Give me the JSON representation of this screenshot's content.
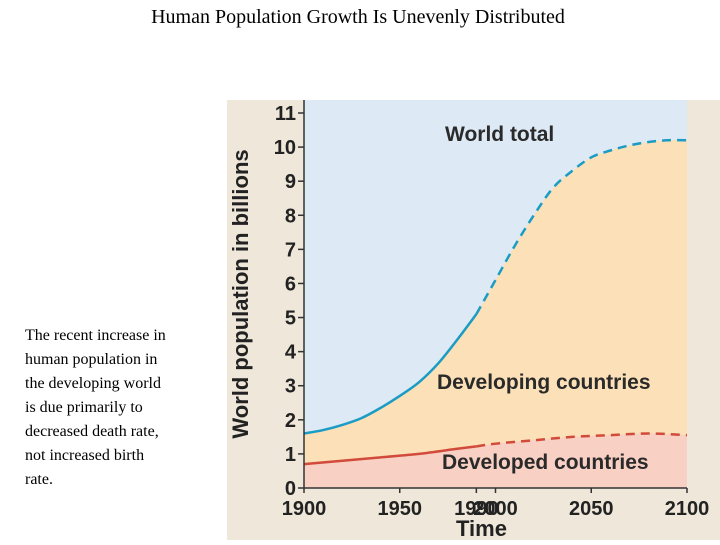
{
  "slide": {
    "title": "Human Population Growth Is Unevenly Distributed",
    "caption_lines": [
      "The recent increase in",
      "human population in",
      "the developing world",
      "is due primarily to",
      "decreased death rate,",
      "not increased birth",
      "rate."
    ]
  },
  "colors": {
    "world_area": "#dde9f5",
    "developing_area": "#fbe0b8",
    "developed_area": "#f8d0c4",
    "world_line": "#1a9cc4",
    "developed_line": "#d24a3a",
    "panel_bg": "#efe7d9"
  },
  "chart_data": {
    "type": "area",
    "title": "",
    "xlabel": "Time",
    "ylabel": "World population in billions",
    "xlim": [
      1900,
      2100
    ],
    "ylim": [
      0,
      11
    ],
    "x_ticks": [
      1900,
      1950,
      1990,
      2000,
      2050,
      2100
    ],
    "y_ticks": [
      0,
      1,
      2,
      3,
      4,
      5,
      6,
      7,
      8,
      9,
      10,
      11
    ],
    "projection_start": 1990,
    "series": [
      {
        "name": "World total",
        "label": "World total",
        "x": [
          1900,
          1910,
          1920,
          1930,
          1940,
          1950,
          1960,
          1970,
          1980,
          1990,
          2000,
          2010,
          2020,
          2030,
          2040,
          2050,
          2060,
          2070,
          2080,
          2090,
          2100
        ],
        "values": [
          1.6,
          1.7,
          1.85,
          2.05,
          2.35,
          2.7,
          3.1,
          3.65,
          4.35,
          5.1,
          6.1,
          7.1,
          8.0,
          8.8,
          9.3,
          9.7,
          9.9,
          10.05,
          10.15,
          10.2,
          10.2
        ]
      },
      {
        "name": "Developed countries",
        "label": "Developed countries",
        "x": [
          1900,
          1920,
          1940,
          1960,
          1980,
          1990,
          2000,
          2020,
          2040,
          2060,
          2080,
          2100
        ],
        "values": [
          0.7,
          0.8,
          0.9,
          1.0,
          1.15,
          1.22,
          1.3,
          1.4,
          1.5,
          1.55,
          1.6,
          1.55
        ]
      }
    ],
    "area_labels": {
      "developing": "Developing countries"
    }
  }
}
